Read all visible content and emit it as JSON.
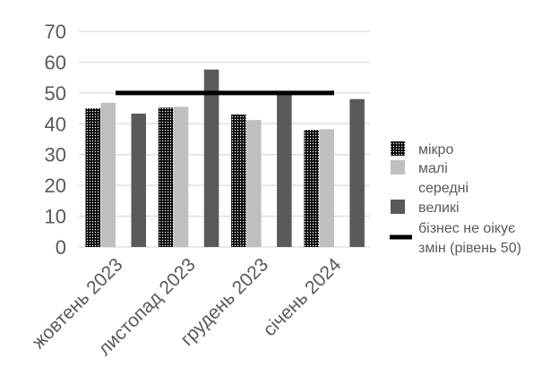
{
  "chart_data": {
    "type": "bar",
    "title": "",
    "xlabel": "",
    "ylabel": "",
    "ylim": [
      0,
      70
    ],
    "yticks": [
      0,
      10,
      20,
      30,
      40,
      50,
      60,
      70
    ],
    "grid": true,
    "legend_position": "right",
    "categories": [
      "жовтень 2023",
      "листопад 2023",
      "грудень 2023",
      "січень 2024"
    ],
    "series": [
      {
        "name": "мікро",
        "values": [
          45,
          45.2,
          43,
          38
        ],
        "color": "#1a1a1a",
        "pattern": "dots"
      },
      {
        "name": "малі",
        "values": [
          46.8,
          45.5,
          41.2,
          38.2
        ],
        "color": "#bfbfbf"
      },
      {
        "name": "середні",
        "values": [
          null,
          null,
          null,
          null
        ],
        "color": "#ffffff"
      },
      {
        "name": "великі",
        "values": [
          43.3,
          57.6,
          50,
          48
        ],
        "color": "#595959"
      }
    ],
    "reference_line": {
      "name": "бізнес не оікує змін (рівень 50)",
      "name_lines": [
        "бізнес не оікує",
        "змін (рівень 50)"
      ],
      "value": 50,
      "color": "#000000"
    }
  }
}
